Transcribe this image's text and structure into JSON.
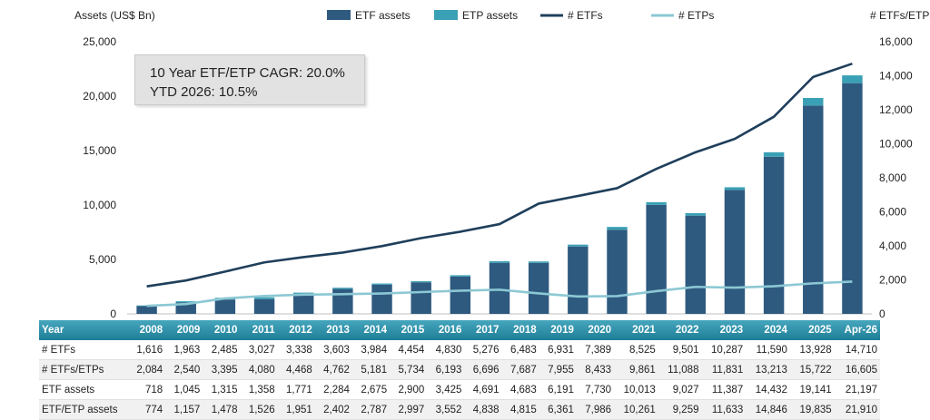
{
  "chart_data": {
    "type": "bar",
    "y_left_label": "Assets (US$ Bn)",
    "y_right_label": "# ETFs/ETPs",
    "y_left_lim": [
      0,
      25000
    ],
    "y_left_ticks": [
      "0",
      "5,000",
      "10,000",
      "15,000",
      "20,000",
      "25,000"
    ],
    "y_right_lim": [
      0,
      16000
    ],
    "y_right_ticks": [
      "0",
      "2,000",
      "4,000",
      "6,000",
      "8,000",
      "10,000",
      "12,000",
      "14,000",
      "16,000"
    ],
    "categories": [
      "2008",
      "2009",
      "2010",
      "2011",
      "2012",
      "2013",
      "2014",
      "2015",
      "2016",
      "2017",
      "2018",
      "2019",
      "2020",
      "2021",
      "2022",
      "2023",
      "2024",
      "2025",
      "Apr-26"
    ],
    "series": [
      {
        "name": "ETF assets",
        "kind": "bar",
        "axis": "left",
        "color": "#2f5a80",
        "values": [
          718,
          1045,
          1315,
          1358,
          1771,
          2284,
          2675,
          2900,
          3425,
          4691,
          4683,
          6191,
          7730,
          10013,
          9027,
          11387,
          14432,
          19141,
          21197
        ]
      },
      {
        "name": "ETP assets",
        "kind": "bar-stacked",
        "axis": "left",
        "color": "#3aa0b5",
        "values": [
          56,
          112,
          163,
          168,
          180,
          118,
          112,
          97,
          127,
          147,
          132,
          170,
          256,
          248,
          232,
          246,
          414,
          694,
          713
        ]
      },
      {
        "name": "# ETFs",
        "kind": "line",
        "axis": "right",
        "color": "#1f3f5b",
        "values": [
          1616,
          1963,
          2485,
          3027,
          3338,
          3603,
          3984,
          4454,
          4830,
          5276,
          6483,
          6931,
          7389,
          8525,
          9501,
          10287,
          11590,
          13928,
          14710
        ]
      },
      {
        "name": "# ETPs",
        "kind": "line",
        "axis": "right",
        "color": "#8cc8d4",
        "values": [
          468,
          577,
          910,
          1053,
          1130,
          1159,
          1197,
          1280,
          1363,
          1420,
          1204,
          1024,
          1044,
          1336,
          1587,
          1544,
          1623,
          1794,
          1895
        ]
      }
    ],
    "grid": false,
    "legend_position": "top"
  },
  "annotation": {
    "line1": "10 Year ETF/ETP CAGR: 20.0%",
    "line2": "YTD 2026: 10.5%"
  },
  "table": {
    "header_label": "Year",
    "years": [
      "2008",
      "2009",
      "2010",
      "2011",
      "2012",
      "2013",
      "2014",
      "2015",
      "2016",
      "2017",
      "2018",
      "2019",
      "2020",
      "2021",
      "2022",
      "2023",
      "2024",
      "2025",
      "Apr-26"
    ],
    "rows": [
      {
        "label": "# ETFs",
        "cells": [
          "1,616",
          "1,963",
          "2,485",
          "3,027",
          "3,338",
          "3,603",
          "3,984",
          "4,454",
          "4,830",
          "5,276",
          "6,483",
          "6,931",
          "7,389",
          "8,525",
          "9,501",
          "10,287",
          "11,590",
          "13,928",
          "14,710"
        ]
      },
      {
        "label": "# ETFs/ETPs",
        "cells": [
          "2,084",
          "2,540",
          "3,395",
          "4,080",
          "4,468",
          "4,762",
          "5,181",
          "5,734",
          "6,193",
          "6,696",
          "7,687",
          "7,955",
          "8,433",
          "9,861",
          "11,088",
          "11,831",
          "13,213",
          "15,722",
          "16,605"
        ]
      },
      {
        "label": "ETF assets",
        "cells": [
          "718",
          "1,045",
          "1,315",
          "1,358",
          "1,771",
          "2,284",
          "2,675",
          "2,900",
          "3,425",
          "4,691",
          "4,683",
          "6,191",
          "7,730",
          "10,013",
          "9,027",
          "11,387",
          "14,432",
          "19,141",
          "21,197"
        ]
      },
      {
        "label": "ETF/ETP assets",
        "cells": [
          "774",
          "1,157",
          "1,478",
          "1,526",
          "1,951",
          "2,402",
          "2,787",
          "2,997",
          "3,552",
          "4,838",
          "4,815",
          "6,361",
          "7,986",
          "10,261",
          "9,259",
          "11,633",
          "14,846",
          "19,835",
          "21,910"
        ]
      }
    ]
  }
}
